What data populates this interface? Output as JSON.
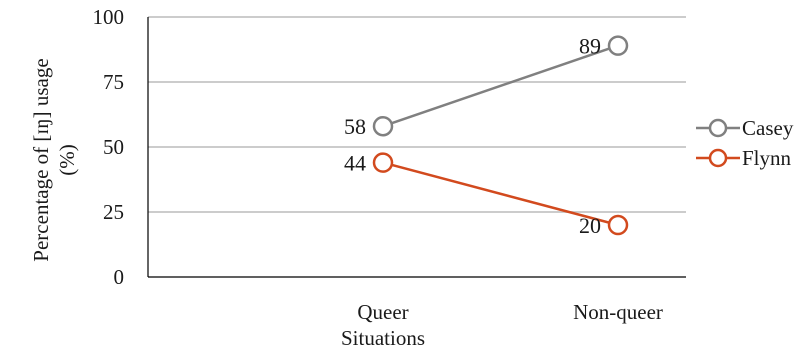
{
  "chart_data": {
    "type": "line",
    "categories": [
      "Queer",
      "Non-queer"
    ],
    "series": [
      {
        "name": "Casey",
        "values": [
          58,
          89
        ],
        "color": "#808080"
      },
      {
        "name": "Flynn",
        "values": [
          44,
          20
        ],
        "color": "#d24a1e"
      }
    ],
    "xlabel": "Situations",
    "ylabel_lines": [
      "Percentage of [ɪŋ] usage",
      "(%)"
    ],
    "ylim": [
      0,
      100
    ],
    "yticks": [
      0,
      25,
      50,
      75,
      100
    ],
    "grid": true,
    "legend": "right",
    "data_labels": true,
    "colors": {
      "grid": "#cccccc",
      "axis": "#000000"
    }
  }
}
